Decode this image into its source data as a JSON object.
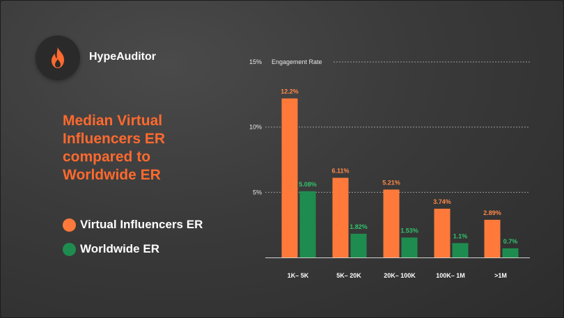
{
  "brand": {
    "name": "HypeAuditor",
    "logo_icon": "flame-icon"
  },
  "headline": "Median Virtual Influencers ER compared to Worldwide ER",
  "legend": [
    {
      "label": "Virtual Influencers ER",
      "color": "#ff7a3a"
    },
    {
      "label": "Worldwide ER",
      "color": "#1f8c4f"
    }
  ],
  "colors": {
    "virtual": "#ff7a3a",
    "worldwide": "#1f8c4f",
    "virtual_label": "#ff8a4a",
    "worldwide_label": "#2fc46c"
  },
  "chart_data": {
    "type": "bar",
    "ylabel": "Engagement Rate",
    "ylim": [
      0,
      15
    ],
    "yticks": [
      {
        "value": 15,
        "label": "15%"
      },
      {
        "value": 10,
        "label": "10%"
      },
      {
        "value": 5,
        "label": "5%"
      }
    ],
    "grid": true,
    "categories": [
      "1K– 5K",
      "5K– 20K",
      "20K– 100K",
      "100K– 1M",
      ">1M"
    ],
    "series": [
      {
        "name": "Virtual Influencers ER",
        "values": [
          12.2,
          6.11,
          5.21,
          3.74,
          2.89
        ],
        "labels": [
          "12.2%",
          "6.11%",
          "5.21%",
          "3.74%",
          "2.89%"
        ]
      },
      {
        "name": "Worldwide ER",
        "values": [
          5.08,
          1.82,
          1.53,
          1.1,
          0.7
        ],
        "labels": [
          "5.08%",
          "1.82%",
          "1.53%",
          "1.1%",
          "0.7%"
        ]
      }
    ]
  }
}
